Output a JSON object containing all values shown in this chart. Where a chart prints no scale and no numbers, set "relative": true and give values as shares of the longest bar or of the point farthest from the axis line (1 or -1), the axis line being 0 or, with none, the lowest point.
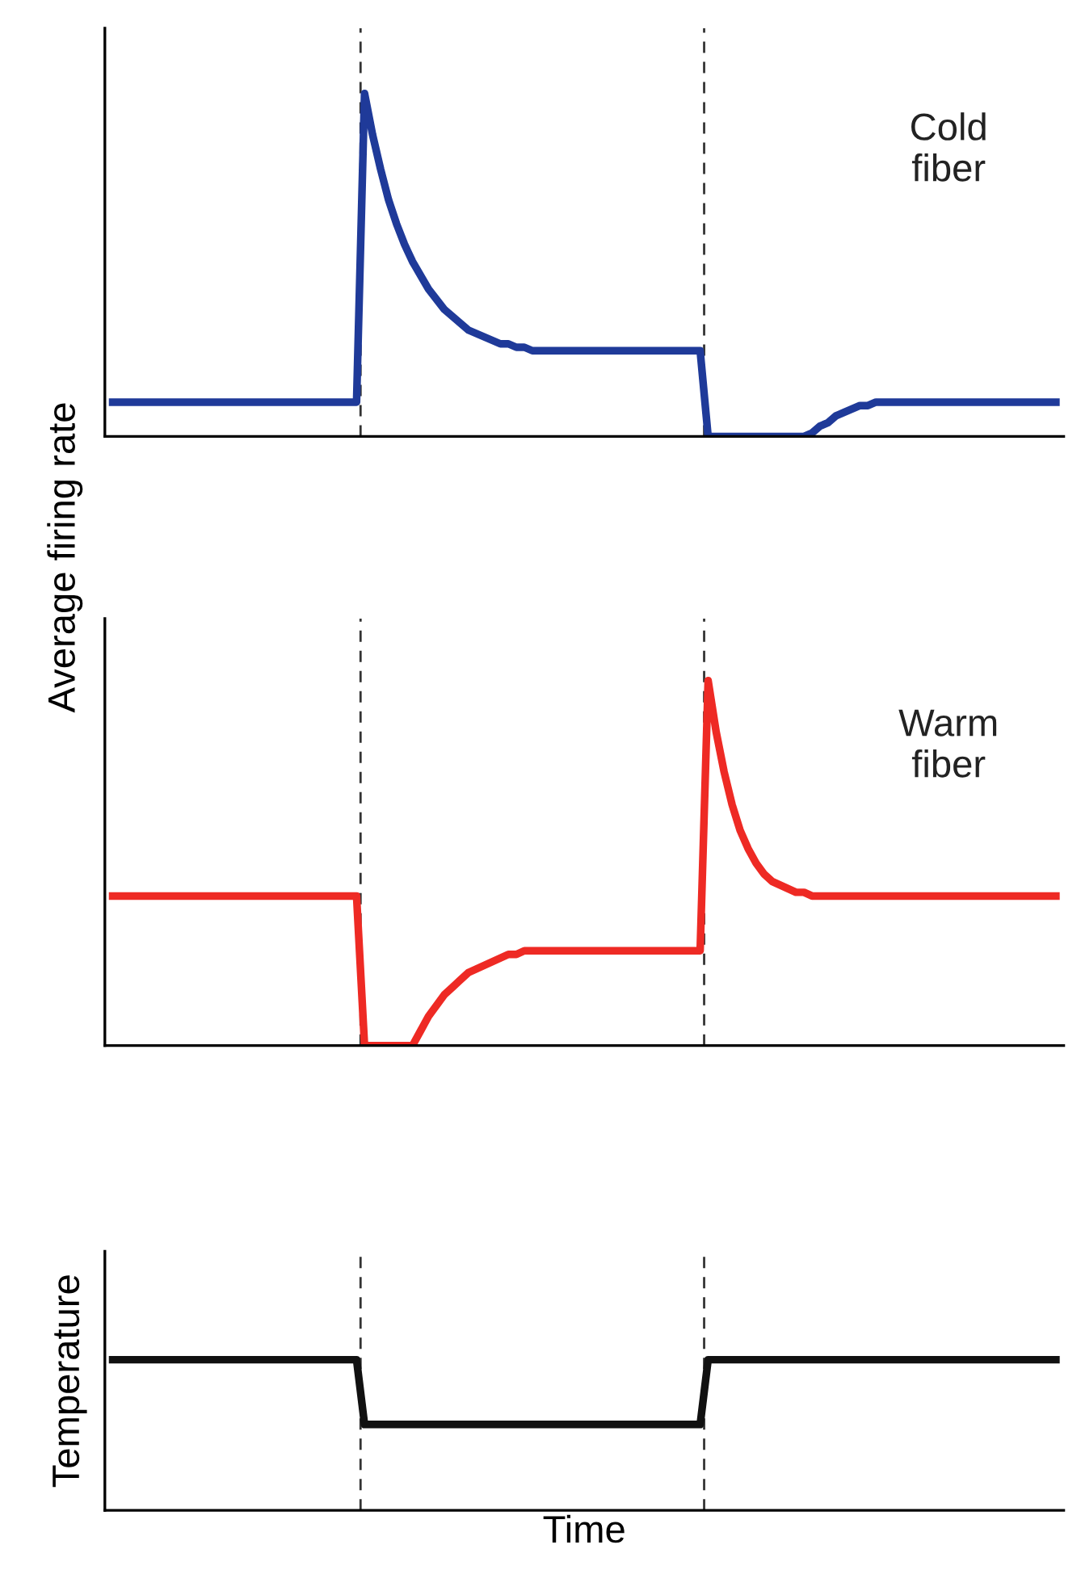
{
  "chart_data": [
    {
      "type": "line",
      "relative": true,
      "tick_labels": false,
      "ylabel": "Average firing rate",
      "annotations": [
        "Cold\nfiber"
      ],
      "categories": [
        null,
        null,
        null,
        null,
        null,
        null,
        null,
        null,
        null,
        null,
        null,
        null,
        null,
        null,
        null,
        null,
        null,
        null,
        null,
        null,
        null,
        null,
        null,
        null,
        null,
        null,
        null,
        null,
        null,
        null,
        null,
        null,
        null,
        null,
        null,
        null,
        null,
        null,
        null,
        null,
        null,
        null,
        null,
        null,
        null,
        null,
        null,
        null,
        null,
        null,
        null,
        null,
        null,
        null,
        null,
        null,
        null,
        null,
        null,
        null,
        null,
        null,
        null,
        null,
        null,
        null,
        null,
        null,
        null,
        null,
        null,
        null,
        null,
        null,
        null,
        null,
        null,
        null,
        null,
        null,
        null,
        null,
        null,
        null,
        null,
        null,
        null,
        null,
        null,
        null,
        null,
        null,
        null,
        null,
        null,
        null,
        null,
        null,
        null,
        null,
        null,
        null,
        null,
        null,
        null,
        null,
        null,
        null,
        null,
        null,
        null,
        null,
        null,
        null,
        null,
        null,
        null,
        null,
        null,
        null
      ],
      "series": [
        {
          "color": "#1f3a99",
          "values": [
            0.1,
            0.1,
            0.1,
            0.1,
            0.1,
            0.1,
            0.1,
            0.1,
            0.1,
            0.1,
            0.1,
            0.1,
            0.1,
            0.1,
            0.1,
            0.1,
            0.1,
            0.1,
            0.1,
            0.1,
            0.1,
            0.1,
            0.1,
            0.1,
            0.1,
            0.1,
            0.1,
            0.1,
            0.1,
            0.1,
            0.1,
            0.1,
            1.0,
            0.88,
            0.78,
            0.69,
            0.62,
            0.56,
            0.51,
            0.47,
            0.43,
            0.4,
            0.37,
            0.35,
            0.33,
            0.31,
            0.3,
            0.29,
            0.28,
            0.27,
            0.27,
            0.26,
            0.26,
            0.25,
            0.25,
            0.25,
            0.25,
            0.25,
            0.25,
            0.25,
            0.25,
            0.25,
            0.25,
            0.25,
            0.25,
            0.25,
            0.25,
            0.25,
            0.25,
            0.25,
            0.25,
            0.25,
            0.25,
            0.25,
            0.25,
            0,
            0,
            0,
            0,
            0,
            0,
            0,
            0,
            0,
            0,
            0,
            0,
            0,
            0.01,
            0.03,
            0.04,
            0.06,
            0.07,
            0.08,
            0.09,
            0.09,
            0.1,
            0.1,
            0.1,
            0.1,
            0.1,
            0.1,
            0.1,
            0.1,
            0.1,
            0.1,
            0.1,
            0.1,
            0.1,
            0.1,
            0.1,
            0.1,
            0.1,
            0.1,
            0.1,
            0.1,
            0.1,
            0.1,
            0.1,
            0.1
          ]
        }
      ]
    },
    {
      "type": "line",
      "relative": true,
      "tick_labels": false,
      "annotations": [
        "Warm\nfiber"
      ],
      "categories": [
        null,
        null,
        null,
        null,
        null,
        null,
        null,
        null,
        null,
        null,
        null,
        null,
        null,
        null,
        null,
        null,
        null,
        null,
        null,
        null,
        null,
        null,
        null,
        null,
        null,
        null,
        null,
        null,
        null,
        null,
        null,
        null,
        null,
        null,
        null,
        null,
        null,
        null,
        null,
        null,
        null,
        null,
        null,
        null,
        null,
        null,
        null,
        null,
        null,
        null,
        null,
        null,
        null,
        null,
        null,
        null,
        null,
        null,
        null,
        null,
        null,
        null,
        null,
        null,
        null,
        null,
        null,
        null,
        null,
        null,
        null,
        null,
        null,
        null,
        null,
        null,
        null,
        null,
        null,
        null,
        null,
        null,
        null,
        null,
        null,
        null,
        null,
        null,
        null,
        null,
        null,
        null,
        null,
        null,
        null,
        null,
        null,
        null,
        null,
        null,
        null,
        null,
        null,
        null,
        null,
        null,
        null,
        null,
        null,
        null,
        null,
        null,
        null,
        null,
        null,
        null,
        null,
        null,
        null,
        null
      ],
      "series": [
        {
          "color": "#ee2a24",
          "values": [
            0.41,
            0.41,
            0.41,
            0.41,
            0.41,
            0.41,
            0.41,
            0.41,
            0.41,
            0.41,
            0.41,
            0.41,
            0.41,
            0.41,
            0.41,
            0.41,
            0.41,
            0.41,
            0.41,
            0.41,
            0.41,
            0.41,
            0.41,
            0.41,
            0.41,
            0.41,
            0.41,
            0.41,
            0.41,
            0.41,
            0.41,
            0.41,
            0,
            0,
            0,
            0,
            0,
            0,
            0,
            0.04,
            0.08,
            0.11,
            0.14,
            0.16,
            0.18,
            0.2,
            0.21,
            0.22,
            0.23,
            0.24,
            0.25,
            0.25,
            0.26,
            0.26,
            0.26,
            0.26,
            0.26,
            0.26,
            0.26,
            0.26,
            0.26,
            0.26,
            0.26,
            0.26,
            0.26,
            0.26,
            0.26,
            0.26,
            0.26,
            0.26,
            0.26,
            0.26,
            0.26,
            0.26,
            0.26,
            1.0,
            0.86,
            0.75,
            0.66,
            0.59,
            0.54,
            0.5,
            0.47,
            0.45,
            0.44,
            0.43,
            0.42,
            0.42,
            0.41,
            0.41,
            0.41,
            0.41,
            0.41,
            0.41,
            0.41,
            0.41,
            0.41,
            0.41,
            0.41,
            0.41,
            0.41,
            0.41,
            0.41,
            0.41,
            0.41,
            0.41,
            0.41,
            0.41,
            0.41,
            0.41,
            0.41,
            0.41,
            0.41,
            0.41,
            0.41,
            0.41,
            0.41,
            0.41,
            0.41,
            0.41
          ]
        }
      ]
    },
    {
      "type": "line",
      "relative": true,
      "tick_labels": false,
      "ylabel": "Temperature",
      "xlabel": "Time",
      "categories": [
        null,
        null,
        null,
        null,
        null,
        null,
        null,
        null,
        null,
        null,
        null,
        null,
        null,
        null,
        null,
        null,
        null,
        null,
        null,
        null,
        null,
        null,
        null,
        null,
        null,
        null,
        null,
        null,
        null,
        null,
        null,
        null,
        null,
        null,
        null,
        null,
        null,
        null,
        null,
        null,
        null,
        null,
        null,
        null,
        null,
        null,
        null,
        null,
        null,
        null,
        null,
        null,
        null,
        null,
        null,
        null,
        null,
        null,
        null,
        null,
        null,
        null,
        null,
        null,
        null,
        null,
        null,
        null,
        null,
        null,
        null,
        null,
        null,
        null,
        null,
        null,
        null,
        null,
        null,
        null,
        null,
        null,
        null,
        null,
        null,
        null,
        null,
        null,
        null,
        null,
        null,
        null,
        null,
        null,
        null,
        null,
        null,
        null,
        null,
        null,
        null,
        null,
        null,
        null,
        null,
        null,
        null,
        null,
        null,
        null,
        null,
        null,
        null,
        null,
        null,
        null,
        null,
        null,
        null,
        null
      ],
      "series": [
        {
          "color": "#111111",
          "values": [
            1,
            1,
            1,
            1,
            1,
            1,
            1,
            1,
            1,
            1,
            1,
            1,
            1,
            1,
            1,
            1,
            1,
            1,
            1,
            1,
            1,
            1,
            1,
            1,
            1,
            1,
            1,
            1,
            1,
            1,
            1,
            1,
            0.57,
            0.57,
            0.57,
            0.57,
            0.57,
            0.57,
            0.57,
            0.57,
            0.57,
            0.57,
            0.57,
            0.57,
            0.57,
            0.57,
            0.57,
            0.57,
            0.57,
            0.57,
            0.57,
            0.57,
            0.57,
            0.57,
            0.57,
            0.57,
            0.57,
            0.57,
            0.57,
            0.57,
            0.57,
            0.57,
            0.57,
            0.57,
            0.57,
            0.57,
            0.57,
            0.57,
            0.57,
            0.57,
            0.57,
            0.57,
            0.57,
            0.57,
            0.57,
            1,
            1,
            1,
            1,
            1,
            1,
            1,
            1,
            1,
            1,
            1,
            1,
            1,
            1,
            1,
            1,
            1,
            1,
            1,
            1,
            1,
            1,
            1,
            1,
            1,
            1,
            1,
            1,
            1,
            1,
            1,
            1,
            1,
            1,
            1,
            1,
            1,
            1,
            1,
            1,
            1,
            1,
            1,
            1,
            1
          ]
        }
      ]
    }
  ]
}
